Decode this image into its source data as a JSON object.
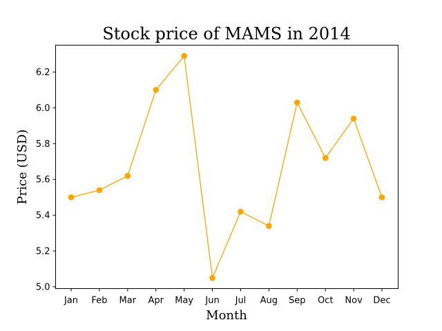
{
  "chart_data": {
    "type": "line",
    "title": "Stock price of MAMS in 2014",
    "xlabel": "Month",
    "ylabel": "Price (USD)",
    "categories": [
      "Jan",
      "Feb",
      "Mar",
      "Apr",
      "May",
      "Jun",
      "Jul",
      "Aug",
      "Sep",
      "Oct",
      "Nov",
      "Dec"
    ],
    "series": [
      {
        "name": "MAMS",
        "values": [
          5.5,
          5.54,
          5.62,
          6.1,
          6.29,
          5.05,
          5.42,
          5.34,
          6.03,
          5.72,
          5.94,
          5.5
        ],
        "color": "#FFA500"
      }
    ],
    "ylim": [
      4.99,
      6.35
    ],
    "yticks": [
      "5.0",
      "5.2",
      "5.4",
      "5.6",
      "5.8",
      "6.0",
      "6.2"
    ],
    "grid": false
  }
}
